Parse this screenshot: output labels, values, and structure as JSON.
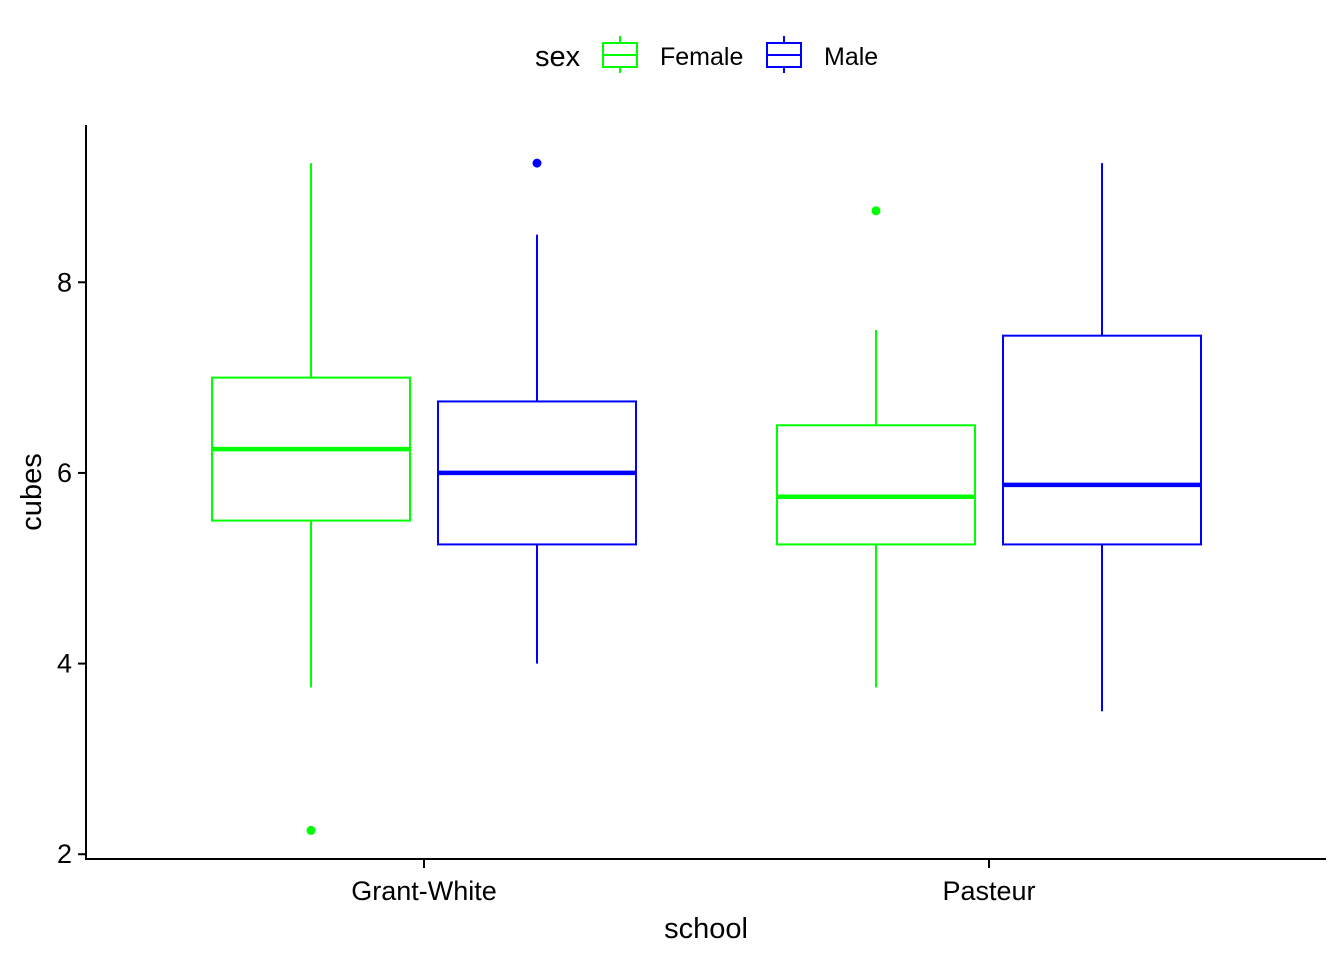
{
  "chart_data": {
    "type": "boxplot",
    "title": "",
    "xlabel": "school",
    "ylabel": "cubes",
    "ylim": [
      1.95,
      9.65
    ],
    "yticks": [
      2,
      4,
      6,
      8
    ],
    "categories": [
      "Grant-White",
      "Pasteur"
    ],
    "grid": false,
    "legend": {
      "title": "sex",
      "position": "top",
      "entries": [
        {
          "name": "Female",
          "color": "#00FF00"
        },
        {
          "name": "Male",
          "color": "#0000FF"
        }
      ]
    },
    "series": [
      {
        "name": "Female",
        "color": "#00FF00",
        "boxes": [
          {
            "category": "Grant-White",
            "whisker_low": 3.75,
            "q1": 5.5,
            "median": 6.25,
            "q3": 7.0,
            "whisker_high": 9.25,
            "outliers": [
              2.25
            ]
          },
          {
            "category": "Pasteur",
            "whisker_low": 3.75,
            "q1": 5.25,
            "median": 5.75,
            "q3": 6.5,
            "whisker_high": 7.5,
            "outliers": [
              8.75
            ]
          }
        ]
      },
      {
        "name": "Male",
        "color": "#0000FF",
        "boxes": [
          {
            "category": "Grant-White",
            "whisker_low": 4.0,
            "q1": 5.25,
            "median": 6.0,
            "q3": 6.75,
            "whisker_high": 8.5,
            "outliers": [
              9.25
            ]
          },
          {
            "category": "Pasteur",
            "whisker_low": 3.5,
            "q1": 5.25,
            "median": 5.875,
            "q3": 7.44,
            "whisker_high": 9.25,
            "outliers": []
          }
        ]
      }
    ]
  }
}
